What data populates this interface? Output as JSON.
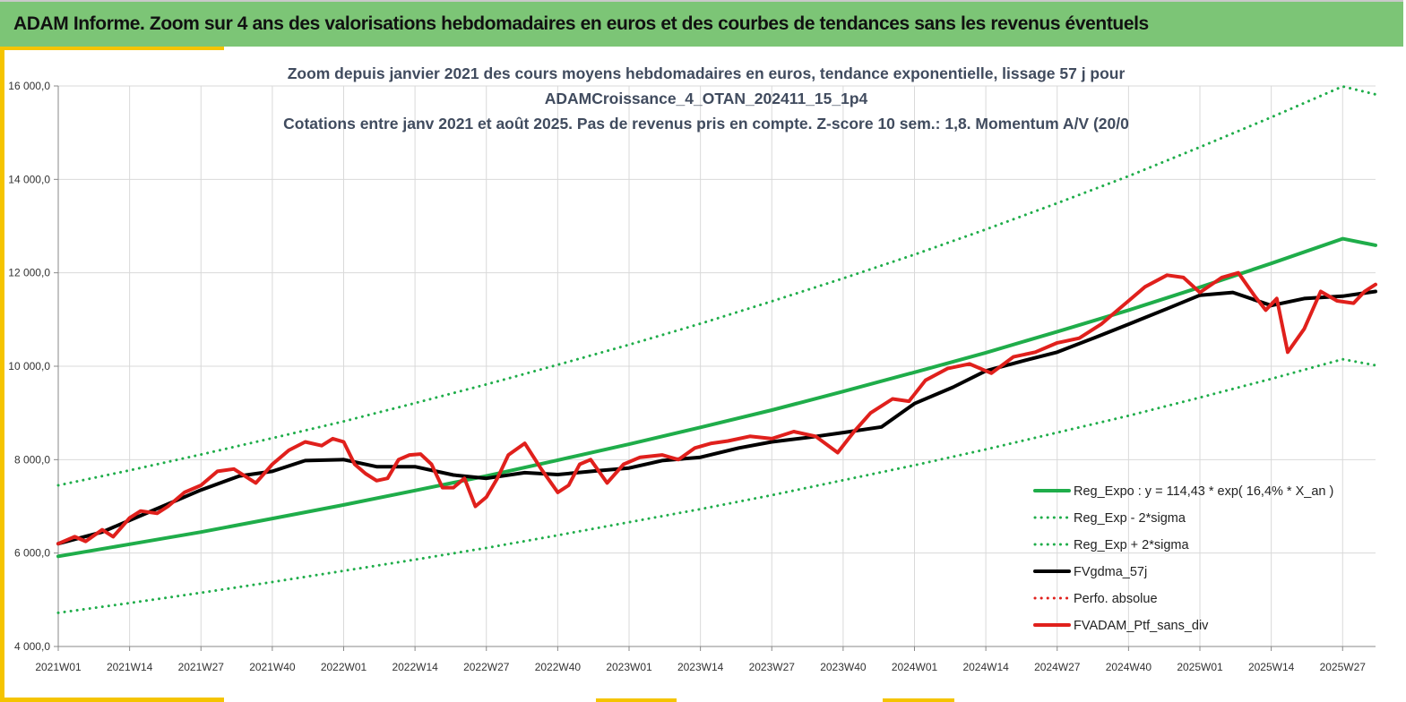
{
  "banner": {
    "title": "ADAM Informe. Zoom sur 4 ans des valorisations hebdomadaires en euros et des courbes de tendances sans les revenus éventuels"
  },
  "chart_data": {
    "type": "line",
    "title_lines": [
      "Zoom depuis janvier 2021 des cours moyens hebdomadaires  en euros, tendance exponentielle, lissage 57 j pour",
      "ADAMCroissance_4_OTAN_202411_15_1p4",
      "Cotations entre janv 2021 et août 2025. Pas de revenus pris en compte. Z-score 10 sem.: 1,8. Momentum A/V (20/0"
    ],
    "x_tick_labels": [
      "2021W01",
      "2021W14",
      "2021W27",
      "2021W40",
      "2022W01",
      "2022W14",
      "2022W27",
      "2022W40",
      "2023W01",
      "2023W14",
      "2023W27",
      "2023W40",
      "2024W01",
      "2024W14",
      "2024W27",
      "2024W40",
      "2025W01",
      "2025W14",
      "2025W27"
    ],
    "y_tick_labels": [
      "4 000,0",
      "6 000,0",
      "8 000,0",
      "10 000,0",
      "12 000,0",
      "14 000,0",
      "16 000,0"
    ],
    "y_ticks": [
      4000,
      6000,
      8000,
      10000,
      12000,
      14000,
      16000
    ],
    "ylim": [
      4000,
      16000
    ],
    "x_range_weeks": [
      0,
      240
    ],
    "grid": true,
    "legend_position": "bottom-right",
    "series": [
      {
        "name": "Reg_Expo : y = 114,43 * exp( 16,4% *  X_an )",
        "color": "#1fad4a",
        "style": "solid",
        "x": [
          0,
          13,
          26,
          39,
          52,
          65,
          78,
          91,
          104,
          117,
          130,
          143,
          156,
          169,
          182,
          195,
          208,
          221,
          234,
          240
        ],
        "y": [
          5930,
          6190,
          6450,
          6740,
          7030,
          7340,
          7650,
          7990,
          8330,
          8690,
          9060,
          9460,
          9870,
          10290,
          10740,
          11200,
          11690,
          12200,
          12730,
          12590
        ]
      },
      {
        "name": "Reg_Exp - 2*sigma",
        "color": "#1fad4a",
        "style": "dotted",
        "x": [
          0,
          13,
          26,
          39,
          52,
          65,
          78,
          91,
          104,
          117,
          130,
          143,
          156,
          169,
          182,
          195,
          208,
          221,
          234,
          240
        ],
        "y": [
          4720,
          4930,
          5150,
          5380,
          5620,
          5860,
          6110,
          6380,
          6660,
          6940,
          7240,
          7560,
          7880,
          8220,
          8580,
          8940,
          9330,
          9730,
          10150,
          10020
        ]
      },
      {
        "name": "Reg_Exp + 2*sigma",
        "color": "#1fad4a",
        "style": "dotted",
        "x": [
          0,
          13,
          26,
          39,
          52,
          65,
          78,
          91,
          104,
          117,
          130,
          143,
          156,
          169,
          182,
          195,
          208,
          221,
          234,
          240
        ],
        "y": [
          7450,
          7770,
          8110,
          8460,
          8820,
          9210,
          9610,
          10030,
          10460,
          10910,
          11390,
          11880,
          12390,
          12930,
          13490,
          14070,
          14690,
          15330,
          15990,
          15820
        ]
      },
      {
        "name": "FVgdma_57j",
        "color": "#000000",
        "style": "solid",
        "x": [
          0,
          8,
          13,
          20,
          26,
          33,
          39,
          45,
          52,
          58,
          65,
          72,
          78,
          85,
          91,
          98,
          104,
          110,
          117,
          124,
          130,
          137,
          143,
          150,
          156,
          163,
          169,
          176,
          182,
          189,
          195,
          202,
          208,
          214,
          221,
          227,
          234,
          240
        ],
        "y": [
          6200,
          6450,
          6700,
          7050,
          7350,
          7650,
          7750,
          7980,
          8000,
          7850,
          7850,
          7670,
          7600,
          7720,
          7680,
          7760,
          7820,
          7980,
          8050,
          8250,
          8380,
          8480,
          8580,
          8700,
          9200,
          9550,
          9900,
          10120,
          10300,
          10620,
          10900,
          11230,
          11520,
          11580,
          11300,
          11450,
          11500,
          11600
        ]
      },
      {
        "name": "Perfo. absolue",
        "color": "#e0201c",
        "style": "dotted",
        "x": [],
        "y": []
      },
      {
        "name": "FVADAM_Ptf_sans_div",
        "color": "#e0201c",
        "style": "solid",
        "x": [
          0,
          3,
          5,
          8,
          10,
          13,
          15,
          18,
          20,
          23,
          26,
          29,
          32,
          36,
          39,
          42,
          45,
          48,
          50,
          52,
          54,
          56,
          58,
          60,
          62,
          64,
          66,
          68,
          70,
          72,
          74,
          76,
          78,
          80,
          82,
          85,
          88,
          91,
          93,
          95,
          97,
          100,
          103,
          106,
          110,
          113,
          116,
          119,
          122,
          126,
          130,
          134,
          138,
          142,
          145,
          148,
          152,
          155,
          158,
          162,
          166,
          170,
          174,
          178,
          182,
          186,
          190,
          192,
          195,
          198,
          202,
          205,
          208,
          212,
          215,
          218,
          220,
          222,
          224,
          227,
          230,
          233,
          236,
          238,
          240
        ],
        "y": [
          6200,
          6350,
          6250,
          6500,
          6350,
          6750,
          6900,
          6850,
          7000,
          7300,
          7450,
          7750,
          7800,
          7500,
          7900,
          8200,
          8380,
          8300,
          8450,
          8380,
          7900,
          7700,
          7550,
          7600,
          8000,
          8100,
          8120,
          7900,
          7400,
          7400,
          7600,
          7000,
          7200,
          7600,
          8100,
          8350,
          7800,
          7300,
          7450,
          7900,
          8000,
          7500,
          7900,
          8050,
          8100,
          8000,
          8250,
          8350,
          8400,
          8500,
          8450,
          8600,
          8500,
          8150,
          8600,
          9000,
          9300,
          9250,
          9700,
          9950,
          10050,
          9850,
          10200,
          10300,
          10500,
          10600,
          10900,
          11100,
          11400,
          11700,
          11950,
          11900,
          11580,
          11900,
          12000,
          11500,
          11200,
          11450,
          10300,
          10800,
          11600,
          11400,
          11350,
          11600,
          11750
        ]
      }
    ]
  }
}
